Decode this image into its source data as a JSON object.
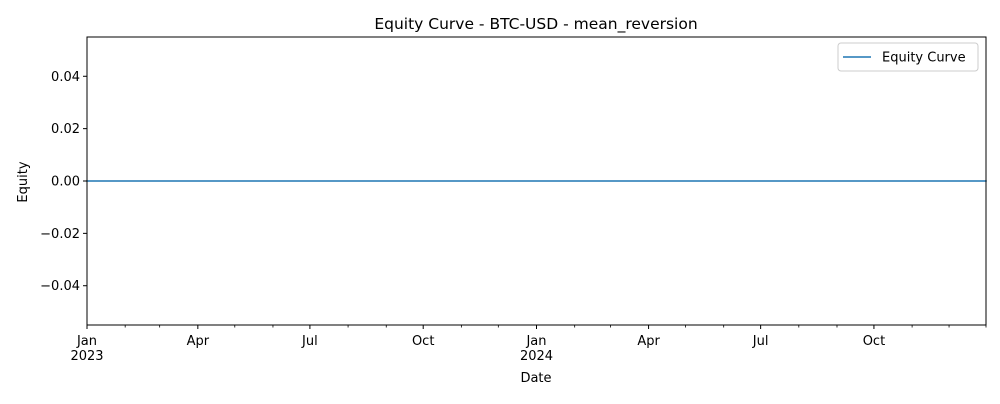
{
  "chart_data": {
    "type": "line",
    "title": "Equity Curve - BTC-USD - mean_reversion",
    "xlabel": "Date",
    "ylabel": "Equity",
    "xlim": [
      "2023-01-01",
      "2024-12-31"
    ],
    "ylim": [
      -0.055,
      0.055
    ],
    "yticks": [
      -0.04,
      -0.02,
      0.0,
      0.02,
      0.04
    ],
    "ytick_labels": [
      "−0.04",
      "−0.02",
      "0.00",
      "0.02",
      "0.04"
    ],
    "xticks_major": [
      {
        "date": "2023-01-01",
        "label": "Jan",
        "year": "2023"
      },
      {
        "date": "2023-04-01",
        "label": "Apr",
        "year": ""
      },
      {
        "date": "2023-07-01",
        "label": "Jul",
        "year": ""
      },
      {
        "date": "2023-10-01",
        "label": "Oct",
        "year": ""
      },
      {
        "date": "2024-01-01",
        "label": "Jan",
        "year": "2024"
      },
      {
        "date": "2024-04-01",
        "label": "Apr",
        "year": ""
      },
      {
        "date": "2024-07-01",
        "label": "Jul",
        "year": ""
      },
      {
        "date": "2024-10-01",
        "label": "Oct",
        "year": ""
      }
    ],
    "xticks_minor": [
      "2023-02-01",
      "2023-03-01",
      "2023-05-01",
      "2023-06-01",
      "2023-08-01",
      "2023-09-01",
      "2023-11-01",
      "2023-12-01",
      "2024-02-01",
      "2024-03-01",
      "2024-05-01",
      "2024-06-01",
      "2024-08-01",
      "2024-09-01",
      "2024-11-01",
      "2024-12-01",
      "2024-12-31"
    ],
    "grid": false,
    "legend_position": "upper right",
    "series": [
      {
        "name": "Equity Curve",
        "color": "#1f77b4",
        "x": [
          "2023-01-01",
          "2024-12-31"
        ],
        "y": [
          0.0,
          0.0
        ]
      }
    ]
  }
}
